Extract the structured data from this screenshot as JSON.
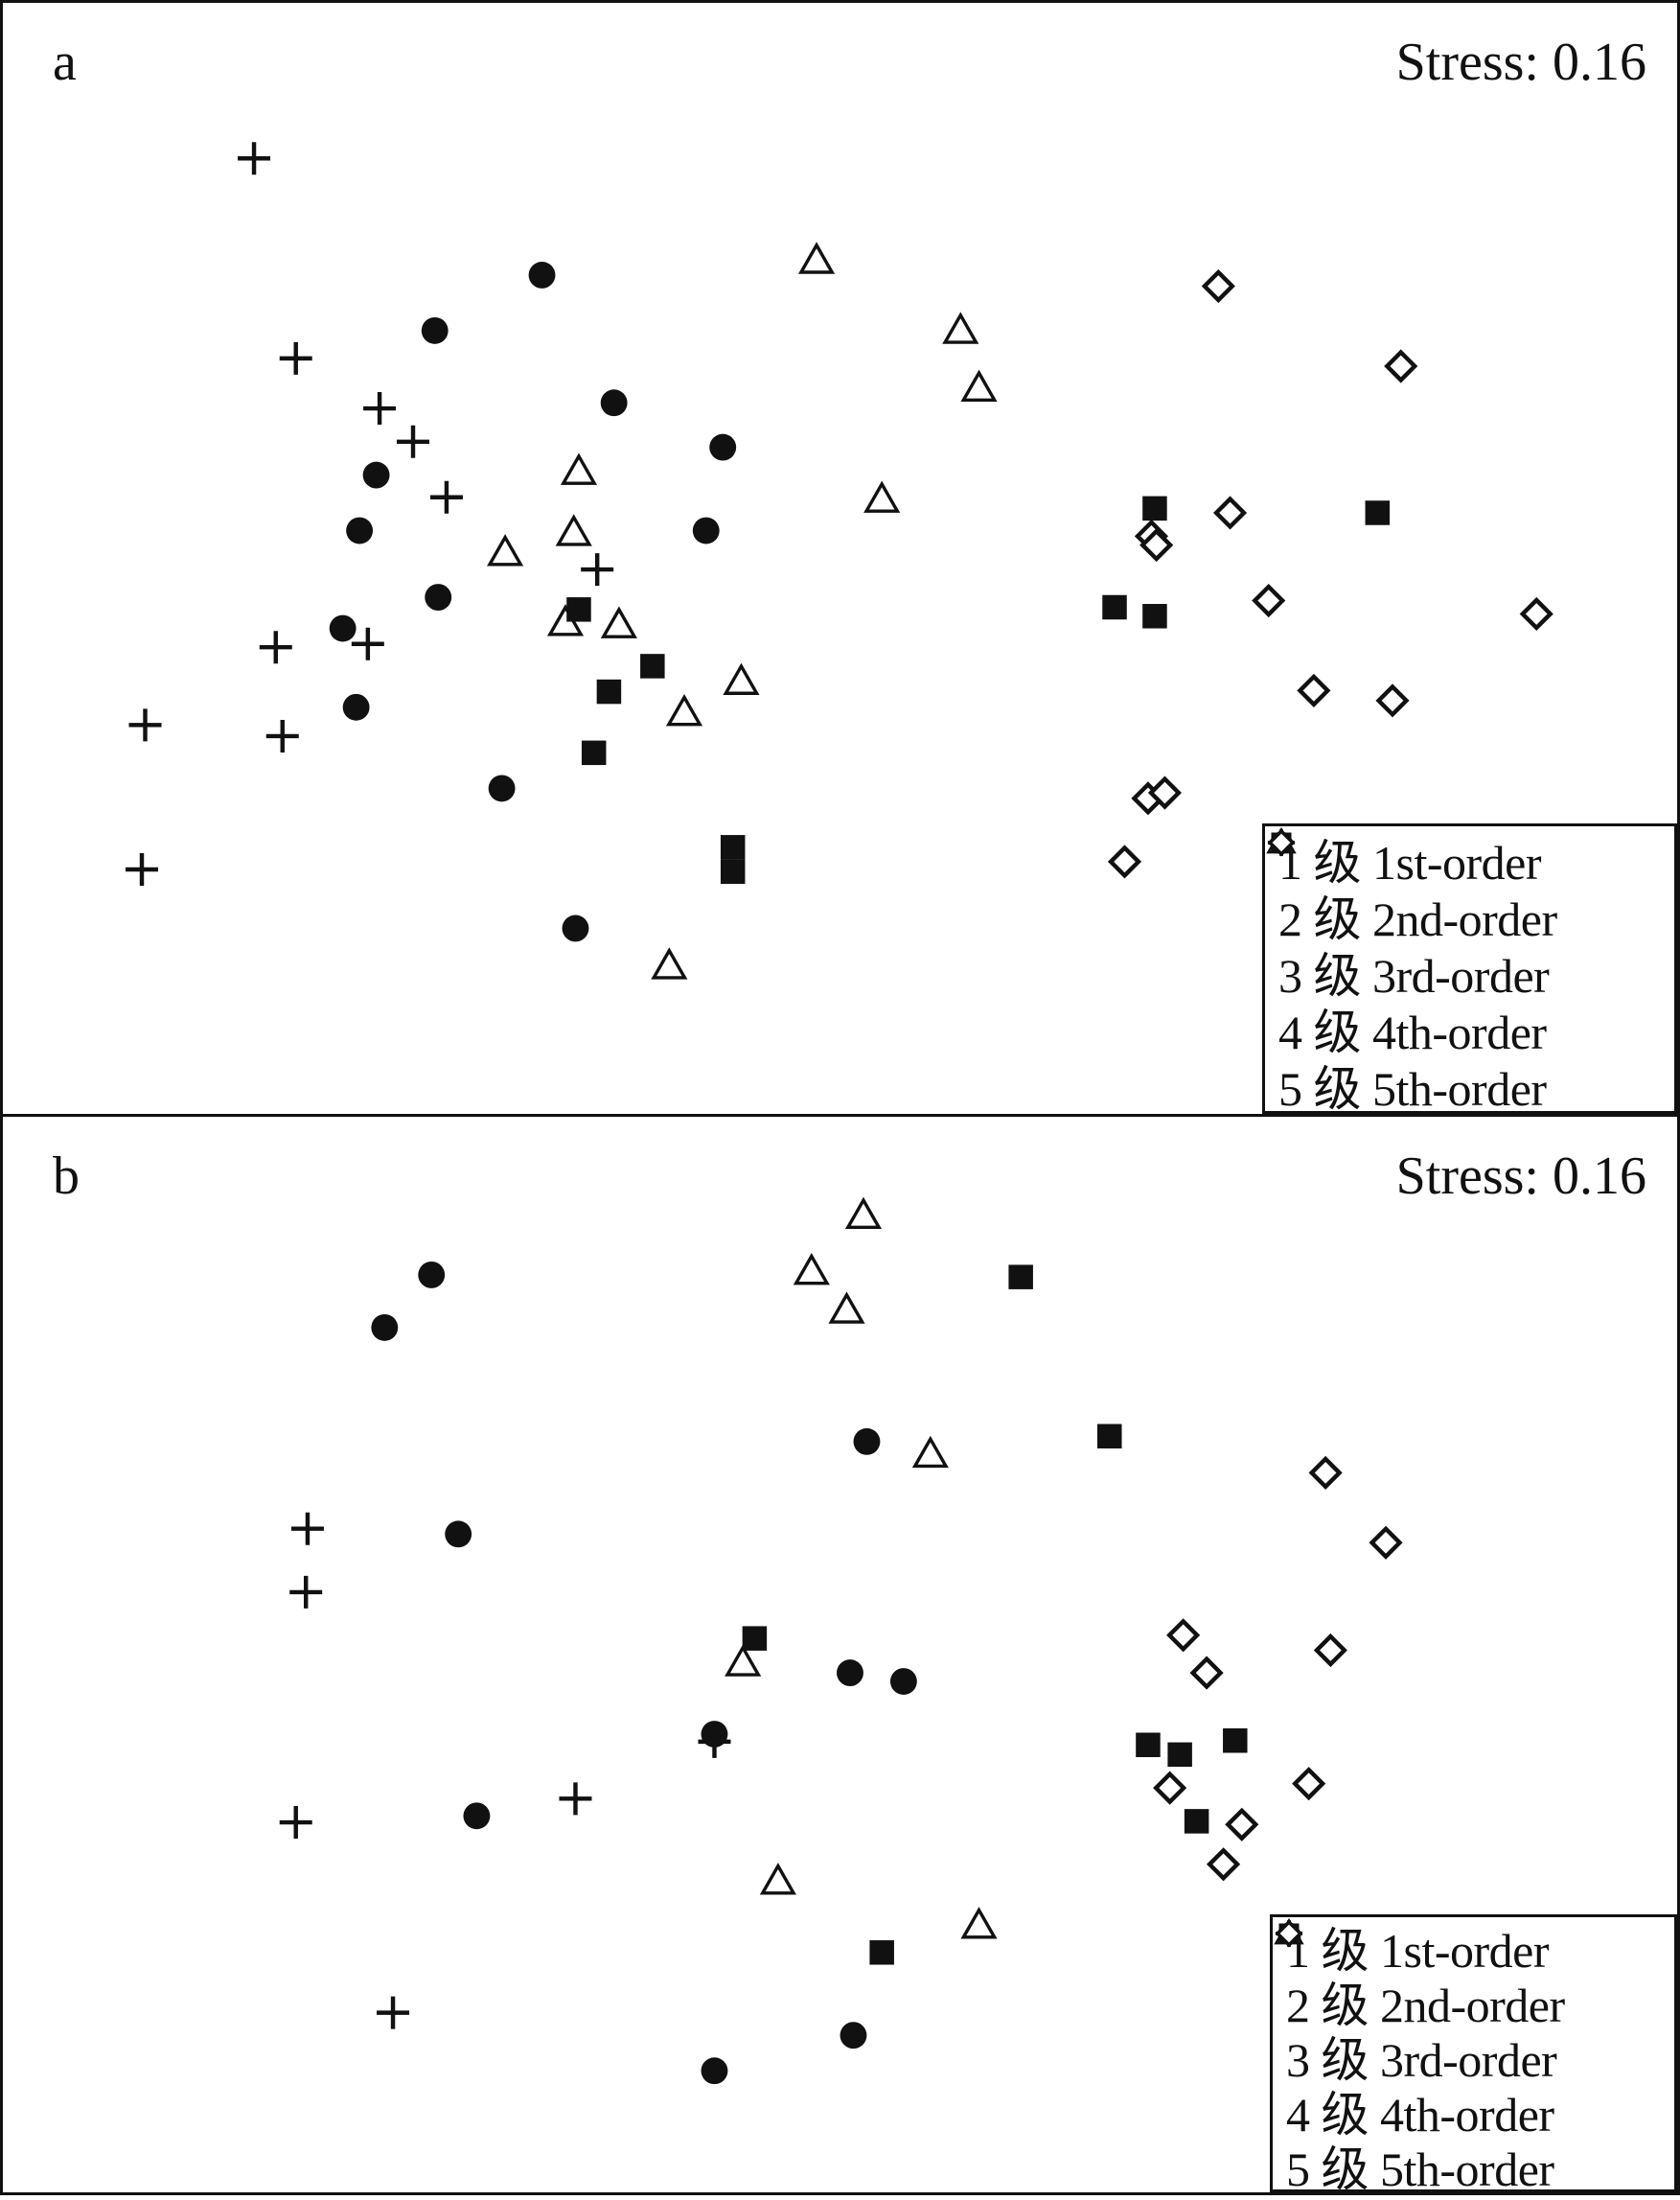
{
  "colors": {
    "ink": "#111111"
  },
  "legend": [
    {
      "key": "1st",
      "symbol": "plus",
      "label": "1 级 1st-order"
    },
    {
      "key": "2nd",
      "symbol": "circle",
      "label": "2 级 2nd-order"
    },
    {
      "key": "3rd",
      "symbol": "triangle-open",
      "label": "3 级 3rd-order"
    },
    {
      "key": "4th",
      "symbol": "square",
      "label": "4 级 4th-order"
    },
    {
      "key": "5th",
      "symbol": "diamond-open",
      "label": "5 级 5th-order"
    }
  ],
  "chart_data": [
    {
      "type": "scatter",
      "panel_label": "a",
      "stress_text": "Stress: 0.16",
      "xlim": [
        0,
        100
      ],
      "ylim": [
        0,
        100
      ],
      "grid": false,
      "legend_position": "bottom-right",
      "series": [
        {
          "key": "1st",
          "name": "1 级 1st-order",
          "points": [
            [
              15,
              86
            ],
            [
              17.5,
              68
            ],
            [
              22.5,
              63.5
            ],
            [
              24.5,
              60.5
            ],
            [
              26.5,
              55.5
            ],
            [
              35.5,
              49
            ],
            [
              16.3,
              42
            ],
            [
              21.8,
              42.3
            ],
            [
              8.5,
              35
            ],
            [
              16.7,
              34
            ],
            [
              8.3,
              22
            ]
          ]
        },
        {
          "key": "2nd",
          "name": "2 级 2nd-order",
          "points": [
            [
              32.2,
              75.5
            ],
            [
              25.8,
              70.5
            ],
            [
              36.5,
              64
            ],
            [
              43,
              60
            ],
            [
              22.3,
              57.5
            ],
            [
              21.3,
              52.5
            ],
            [
              42,
              52.5
            ],
            [
              26,
              46.5
            ],
            [
              20.3,
              43.7
            ],
            [
              21.1,
              36.6
            ],
            [
              29.8,
              29.3
            ],
            [
              34.2,
              16.7
            ]
          ]
        },
        {
          "key": "3rd",
          "name": "3 级 3rd-order",
          "points": [
            [
              48.6,
              76.8
            ],
            [
              57.2,
              70.5
            ],
            [
              58.3,
              65.3
            ],
            [
              34.4,
              57.8
            ],
            [
              52.5,
              55.3
            ],
            [
              34.1,
              52.3
            ],
            [
              30,
              50.5
            ],
            [
              33.6,
              44.2
            ],
            [
              36.8,
              44
            ],
            [
              44.1,
              38.9
            ],
            [
              40.7,
              36.1
            ],
            [
              39.8,
              13.3
            ]
          ]
        },
        {
          "key": "4th",
          "name": "4 级 4th-order",
          "points": [
            [
              68.8,
              54.5
            ],
            [
              82.1,
              54.1
            ],
            [
              34.4,
              45.4
            ],
            [
              66.4,
              45.6
            ],
            [
              68.8,
              44.8
            ],
            [
              38.8,
              40.3
            ],
            [
              36.2,
              38
            ],
            [
              35.3,
              32.5
            ],
            [
              43.6,
              24
            ],
            [
              43.6,
              21.8
            ]
          ]
        },
        {
          "key": "5th",
          "name": "5 级 5th-order",
          "points": [
            [
              72.6,
              74.5
            ],
            [
              83.5,
              67.3
            ],
            [
              73.3,
              54.1
            ],
            [
              68.6,
              52
            ],
            [
              68.9,
              51.2
            ],
            [
              75.6,
              46.2
            ],
            [
              91.6,
              45
            ],
            [
              78.3,
              38.1
            ],
            [
              83,
              37.2
            ],
            [
              68.4,
              28.4
            ],
            [
              69.4,
              28.9
            ],
            [
              67,
              22.7
            ]
          ]
        }
      ]
    },
    {
      "type": "scatter",
      "panel_label": "b",
      "stress_text": "Stress: 0.16",
      "xlim": [
        0,
        100
      ],
      "ylim": [
        0,
        100
      ],
      "grid": false,
      "legend_position": "bottom-right",
      "series": [
        {
          "key": "1st",
          "name": "1 级 1st-order",
          "points": [
            [
              18.2,
              61.7
            ],
            [
              18.1,
              55.8
            ],
            [
              42.5,
              41.9
            ],
            [
              34.2,
              36.6
            ],
            [
              17.5,
              34.4
            ],
            [
              23.3,
              16.7
            ]
          ]
        },
        {
          "key": "2nd",
          "name": "2 级 2nd-order",
          "points": [
            [
              25.6,
              85.3
            ],
            [
              22.8,
              80.4
            ],
            [
              51.6,
              69.8
            ],
            [
              27.2,
              61.2
            ],
            [
              50.6,
              48.3
            ],
            [
              53.8,
              47.5
            ],
            [
              42.5,
              42.6
            ],
            [
              28.3,
              35
            ],
            [
              50.8,
              14.6
            ],
            [
              42.5,
              11.3
            ]
          ]
        },
        {
          "key": "3rd",
          "name": "3 级 3rd-order",
          "points": [
            [
              51.4,
              90.8
            ],
            [
              48.3,
              85.6
            ],
            [
              50.4,
              82
            ],
            [
              55.4,
              68.6
            ],
            [
              44.2,
              49.2
            ],
            [
              46.3,
              28.9
            ],
            [
              58.3,
              24.8
            ]
          ]
        },
        {
          "key": "4th",
          "name": "4 级 4th-order",
          "points": [
            [
              60.8,
              85.1
            ],
            [
              66.1,
              70.3
            ],
            [
              44.9,
              51.5
            ],
            [
              68.4,
              41.6
            ],
            [
              70.3,
              40.7
            ],
            [
              73.6,
              42
            ],
            [
              71.3,
              34.5
            ],
            [
              52.5,
              22.3
            ]
          ]
        },
        {
          "key": "5th",
          "name": "5 级 5th-order",
          "points": [
            [
              79,
              66.9
            ],
            [
              82.6,
              60.4
            ],
            [
              70.5,
              51.8
            ],
            [
              79.3,
              50.4
            ],
            [
              71.9,
              48.3
            ],
            [
              69.7,
              37.6
            ],
            [
              78,
              38
            ],
            [
              74,
              34.2
            ],
            [
              72.9,
              30.5
            ]
          ]
        }
      ]
    }
  ]
}
